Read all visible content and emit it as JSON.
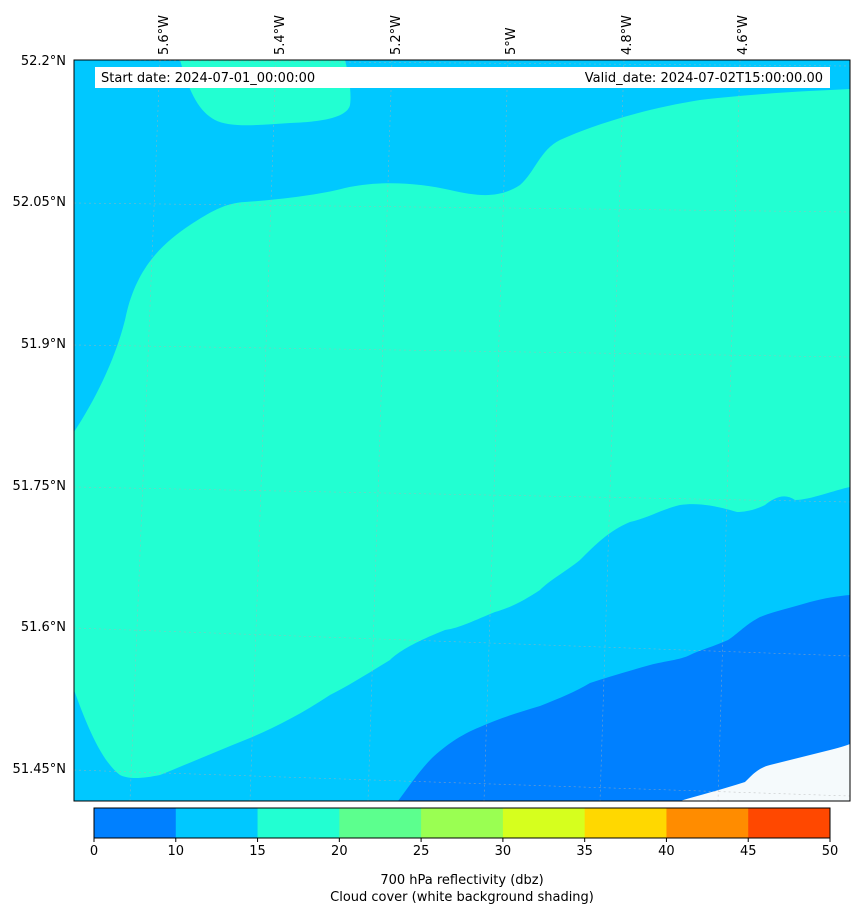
{
  "map": {
    "start_date_text": "Start date: 2024-07-01_00:00:00",
    "valid_date_text": "Valid_date: 2024-07-02T15:00:00.00",
    "lon_labels": [
      "5.6°W",
      "5.4°W",
      "5.2°W",
      "5°W",
      "4.8°W",
      "4.6°W"
    ],
    "lat_labels": [
      "52.2°N",
      "52.05°N",
      "51.9°N",
      "51.75°N",
      "51.6°N",
      "51.45°N"
    ],
    "region_colors": {
      "band_10_15": "#00c8ff",
      "band_15_20": "#22ffd2",
      "band_0_10": "#0080ff",
      "cloud": "#f5fafc"
    }
  },
  "colorbar": {
    "ticks": [
      "0",
      "10",
      "15",
      "20",
      "25",
      "30",
      "35",
      "40",
      "45",
      "50"
    ],
    "colors": [
      "#0080ff",
      "#00c8ff",
      "#22ffd2",
      "#5cff8e",
      "#9aff52",
      "#d6ff1e",
      "#ffd800",
      "#ff8c00",
      "#ff4800"
    ],
    "label": "700 hPa reflectivity (dbz)",
    "sublabel": "Cloud cover (white background shading)"
  }
}
